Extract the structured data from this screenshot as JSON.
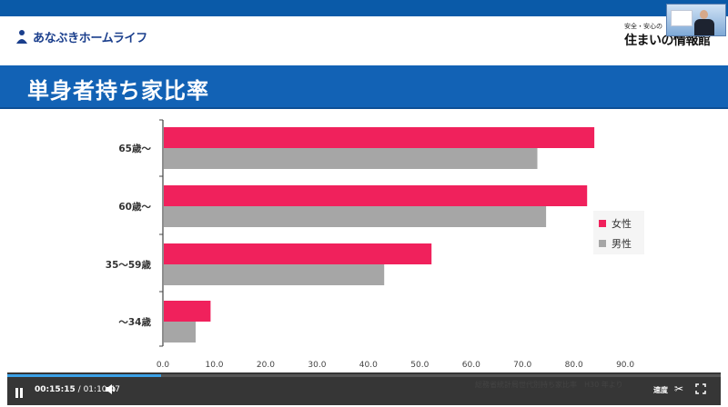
{
  "header": {
    "logo_text": "あなぶきホームライフ",
    "brand_sub": "安全・安心の",
    "brand_main": "住まいの情報館"
  },
  "slide": {
    "title": "単身者持ち家比率",
    "source": "総務省統計局世代別持ち家比率　H30 年より"
  },
  "chart_data": {
    "type": "bar",
    "orientation": "horizontal",
    "categories": [
      "65歳〜",
      "60歳〜",
      "35〜59歳",
      "〜34歳"
    ],
    "series": [
      {
        "name": "女性",
        "color": "#f0215c",
        "values": [
          83.8,
          82.4,
          52.1,
          9.1
        ]
      },
      {
        "name": "男性",
        "color": "#a6a6a6",
        "values": [
          72.7,
          74.4,
          42.9,
          6.2
        ]
      }
    ],
    "xticks": [
      "0.0",
      "10.0",
      "20.0",
      "30.0",
      "40.0",
      "50.0",
      "60.0",
      "70.0",
      "80.0",
      "90.0"
    ],
    "xlim": [
      0,
      90
    ],
    "legend": "right"
  },
  "player": {
    "current_time": "00:15:15",
    "separator": "/",
    "total_time": "01:10:47",
    "speed_label": "速度",
    "progress": 0.215
  }
}
